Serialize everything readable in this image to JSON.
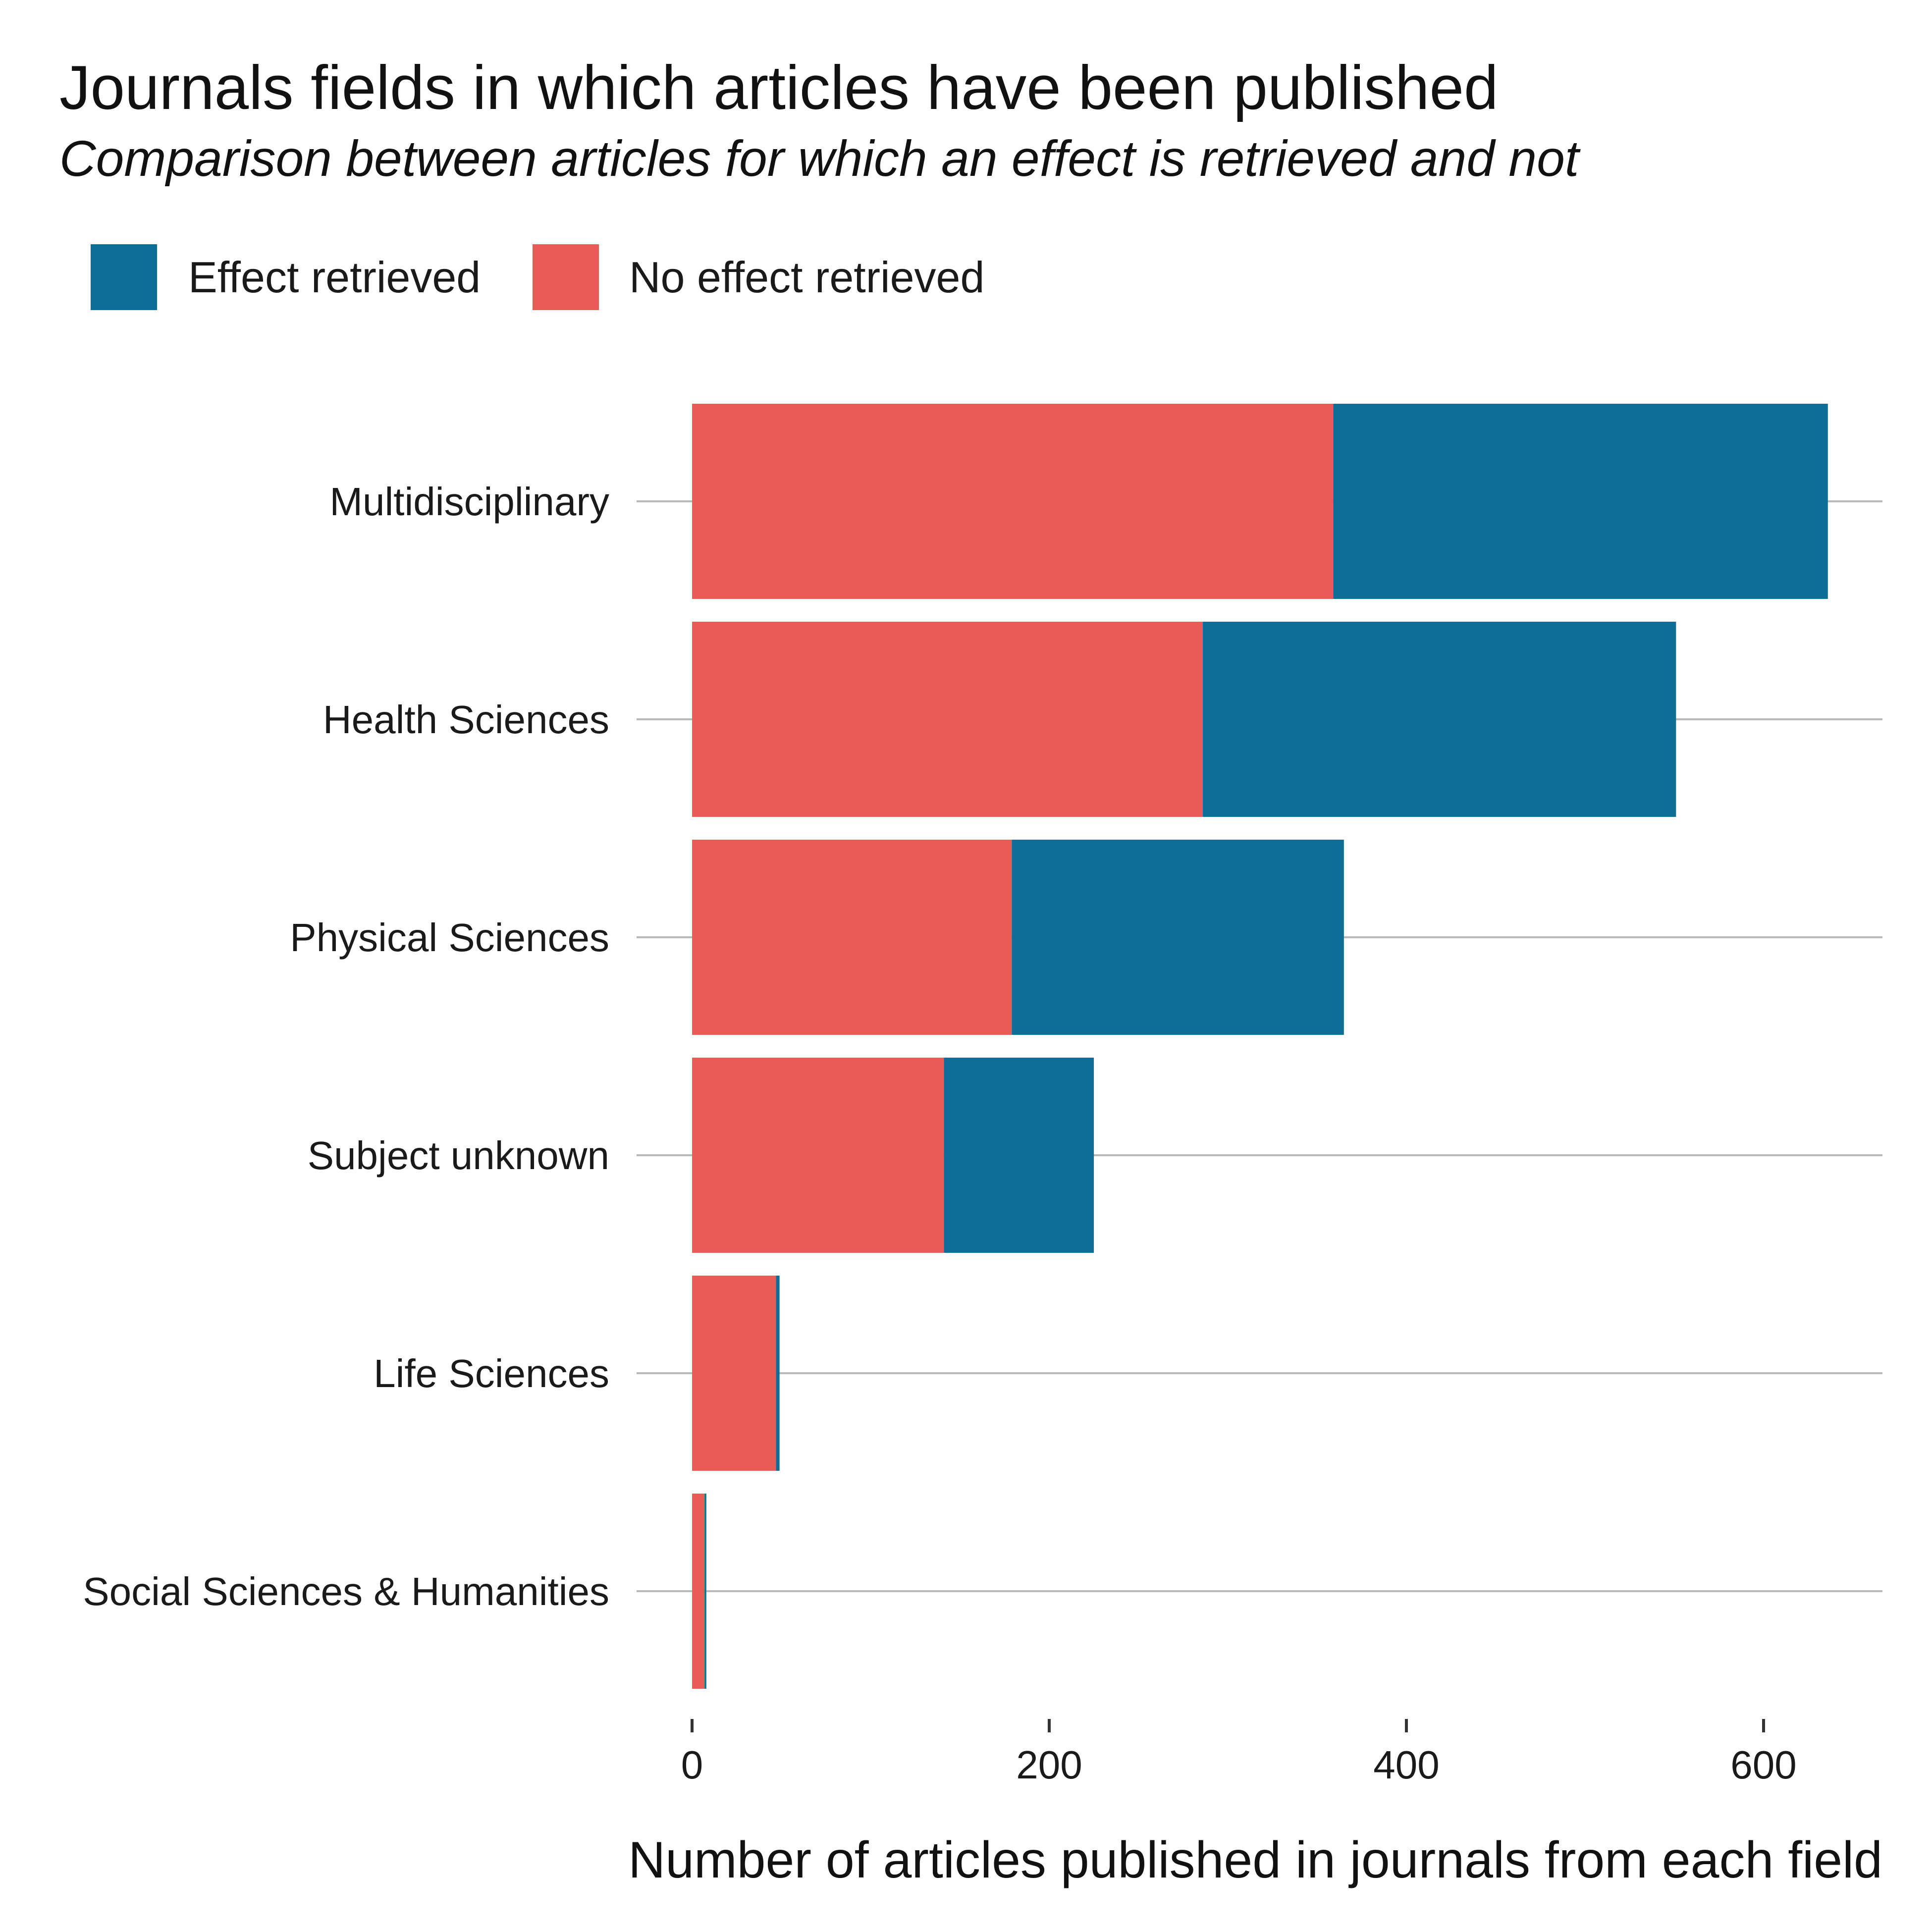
{
  "chart_data": {
    "type": "bar",
    "orientation": "horizontal",
    "stacked": true,
    "title": "Journals fields in which articles have been published",
    "subtitle": "Comparison between articles for which an effect is retrieved and not",
    "xlabel": "Number of articles published in journals from each field",
    "ylabel": "",
    "xlim": [
      0,
      665
    ],
    "x_ticks": [
      0,
      200,
      400,
      600
    ],
    "grid": "horizontal lines at each category",
    "legend_position": "top-left",
    "categories": [
      "Multidisciplinary",
      "Health Sciences",
      "Physical Sciences",
      "Subject unknown",
      "Life Sciences",
      "Social Sciences & Humanities"
    ],
    "series": [
      {
        "name": "No effect retrieved",
        "color": "#E85B56",
        "values": [
          359,
          286,
          179,
          141,
          47,
          7
        ]
      },
      {
        "name": "Effect retrieved",
        "color": "#0F6E96",
        "values": [
          277,
          265,
          186,
          84,
          2,
          1
        ]
      }
    ],
    "legend": [
      "Effect retrieved",
      "No effect retrieved"
    ]
  }
}
